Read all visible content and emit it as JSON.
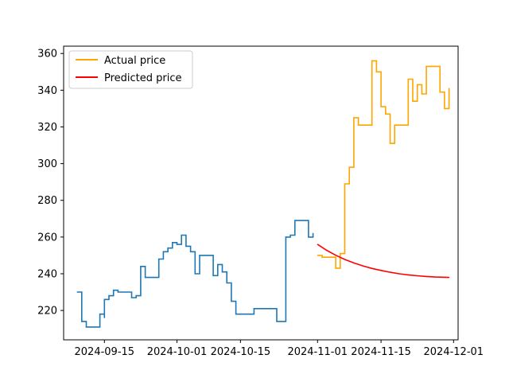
{
  "chart_data": {
    "type": "line",
    "title": "",
    "xlabel": "",
    "ylabel": "",
    "xlim": [
      "2024-09-06",
      "2024-12-02"
    ],
    "ylim": [
      204,
      364
    ],
    "x_ticks": [
      "2024-09-15",
      "2024-10-01",
      "2024-10-15",
      "2024-11-01",
      "2024-11-15",
      "2024-12-01"
    ],
    "y_ticks": [
      220,
      240,
      260,
      280,
      300,
      320,
      340,
      360
    ],
    "grid": false,
    "legend": {
      "position": "top-left",
      "entries": [
        "Actual price",
        "Predicted price"
      ]
    },
    "colors": {
      "history": "#1f77b4",
      "actual": "#ffa500",
      "predicted": "#ff0000"
    },
    "series": [
      {
        "name": "",
        "role": "history",
        "x": [
          "2024-09-09",
          "2024-09-10",
          "2024-09-10",
          "2024-09-11",
          "2024-09-14",
          "2024-09-14",
          "2024-09-15",
          "2024-09-15",
          "2024-09-16",
          "2024-09-17",
          "2024-09-18",
          "2024-09-19",
          "2024-09-20",
          "2024-09-21",
          "2024-09-22",
          "2024-09-23",
          "2024-09-24",
          "2024-09-25",
          "2024-09-26",
          "2024-09-27",
          "2024-09-28",
          "2024-09-29",
          "2024-09-30",
          "2024-10-01",
          "2024-10-02",
          "2024-10-02",
          "2024-10-03",
          "2024-10-04",
          "2024-10-05",
          "2024-10-06",
          "2024-10-07",
          "2024-10-08",
          "2024-10-09",
          "2024-10-10",
          "2024-10-11",
          "2024-10-12",
          "2024-10-12",
          "2024-10-13",
          "2024-10-14",
          "2024-10-15",
          "2024-10-16",
          "2024-10-17",
          "2024-10-18",
          "2024-10-19",
          "2024-10-20",
          "2024-10-21",
          "2024-10-22",
          "2024-10-23",
          "2024-10-23",
          "2024-10-24",
          "2024-10-25",
          "2024-10-26",
          "2024-10-27",
          "2024-10-28",
          "2024-10-29",
          "2024-10-30",
          "2024-10-31"
        ],
        "values": [
          230,
          230,
          214,
          211,
          211,
          218,
          216,
          226,
          228,
          231,
          230,
          230,
          230,
          227,
          228,
          244,
          238,
          238,
          238,
          248,
          252,
          254,
          257,
          256,
          261,
          261,
          255,
          252,
          240,
          250,
          250,
          250,
          239,
          245,
          241,
          235,
          235,
          225,
          218,
          218,
          218,
          218,
          221,
          221,
          221,
          221,
          221,
          218,
          214,
          214,
          260,
          261,
          269,
          269,
          269,
          260,
          262
        ]
      },
      {
        "name": "Actual price",
        "role": "actual",
        "x": [
          "2024-11-01",
          "2024-11-02",
          "2024-11-03",
          "2024-11-04",
          "2024-11-05",
          "2024-11-06",
          "2024-11-07",
          "2024-11-08",
          "2024-11-09",
          "2024-11-10",
          "2024-11-11",
          "2024-11-12",
          "2024-11-13",
          "2024-11-14",
          "2024-11-15",
          "2024-11-16",
          "2024-11-17",
          "2024-11-18",
          "2024-11-19",
          "2024-11-20",
          "2024-11-21",
          "2024-11-22",
          "2024-11-23",
          "2024-11-24",
          "2024-11-25",
          "2024-11-26",
          "2024-11-27",
          "2024-11-28",
          "2024-11-29",
          "2024-11-30"
        ],
        "values": [
          250,
          249,
          249,
          249,
          243,
          251,
          289,
          298,
          325,
          321,
          321,
          321,
          356,
          350,
          331,
          327,
          311,
          321,
          321,
          321,
          346,
          334,
          343,
          338,
          353,
          353,
          353,
          339,
          330,
          341
        ]
      },
      {
        "name": "Predicted price",
        "role": "predicted",
        "x": [
          "2024-11-01",
          "2024-11-03",
          "2024-11-05",
          "2024-11-07",
          "2024-11-09",
          "2024-11-11",
          "2024-11-13",
          "2024-11-15",
          "2024-11-17",
          "2024-11-19",
          "2024-11-21",
          "2024-11-23",
          "2024-11-25",
          "2024-11-27",
          "2024-11-30"
        ],
        "values": [
          256,
          252.8,
          250.1,
          247.8,
          245.9,
          244.3,
          242.9,
          241.8,
          240.8,
          240.0,
          239.4,
          238.9,
          238.5,
          238.2,
          238.0
        ]
      }
    ]
  }
}
